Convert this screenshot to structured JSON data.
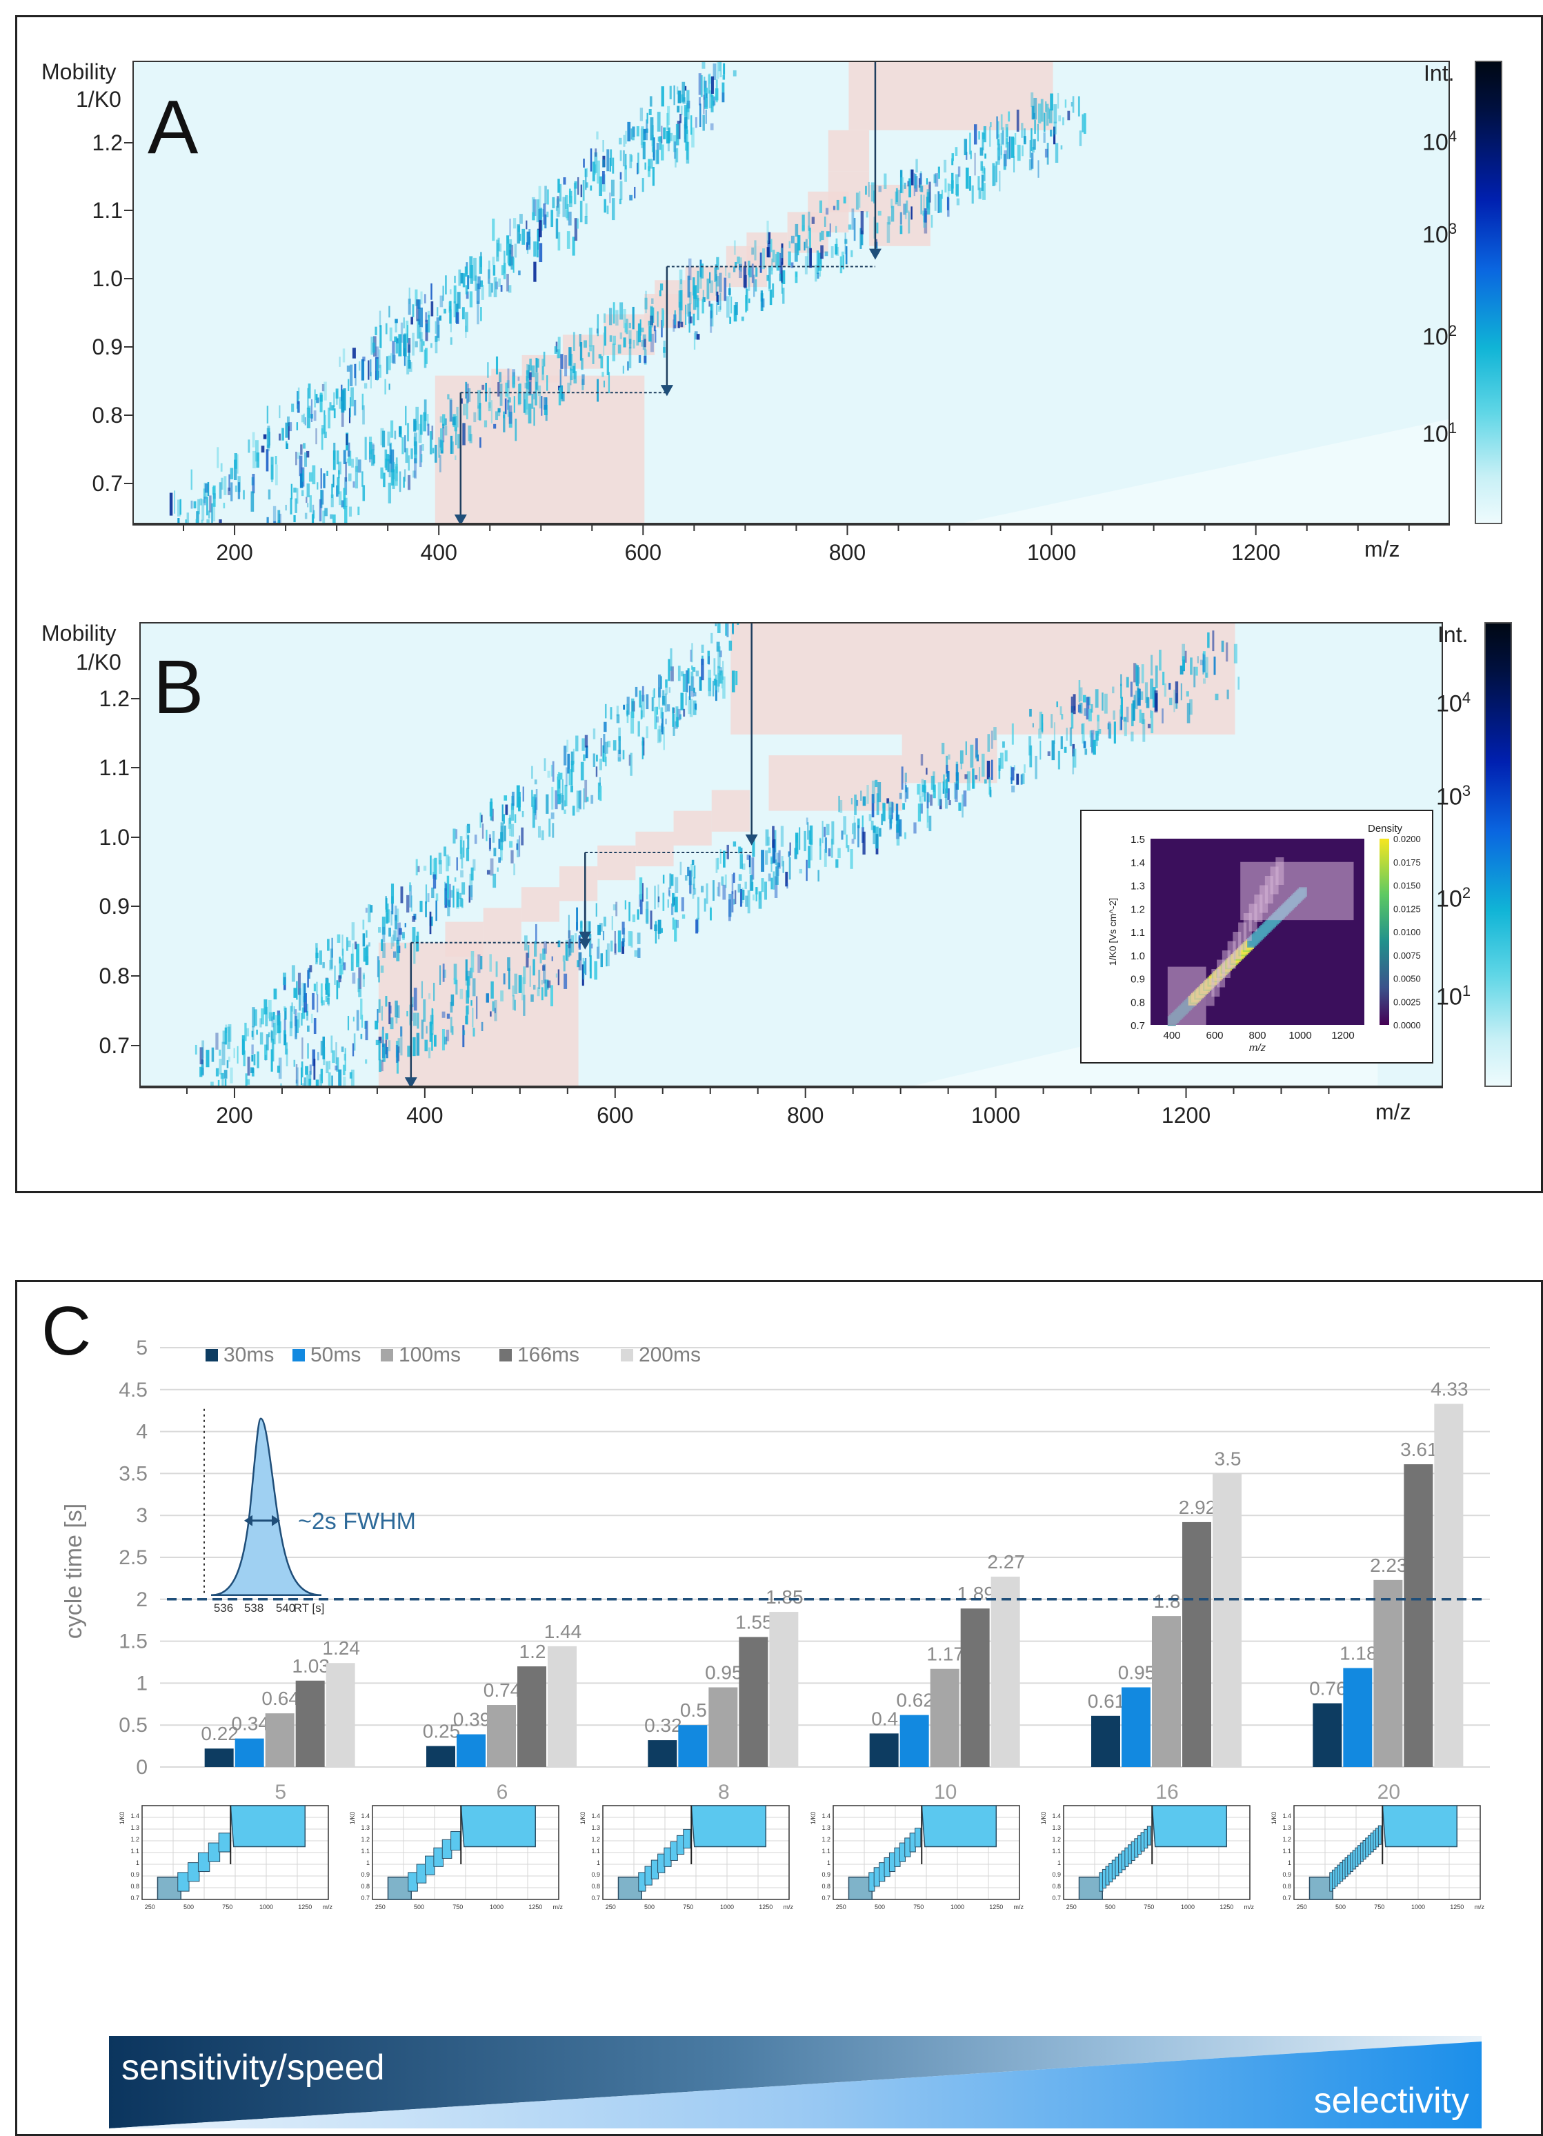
{
  "panels": [
    {
      "letter": "A",
      "y_title_1": "Mobility",
      "y_title_2": "1/K0",
      "y_ticks": [
        "1.2",
        "1.1",
        "1.0",
        "0.9",
        "0.8",
        "0.7"
      ],
      "x_ticks": [
        "200",
        "400",
        "600",
        "800",
        "1000",
        "1200"
      ],
      "x_unit": "m/z",
      "colorbar_title": "Int.",
      "colorbar_ticks": [
        "10^4",
        "10^3",
        "10^2",
        "10^1"
      ]
    },
    {
      "letter": "B",
      "y_title_1": "Mobility",
      "y_title_2": "1/K0",
      "y_ticks": [
        "1.2",
        "1.1",
        "1.0",
        "0.9",
        "0.8",
        "0.7"
      ],
      "x_ticks": [
        "200",
        "400",
        "600",
        "800",
        "1000",
        "1200"
      ],
      "x_unit": "m/z",
      "colorbar_title": "Int.",
      "colorbar_ticks": [
        "10^4",
        "10^3",
        "10^2",
        "10^1"
      ],
      "inset": {
        "title": "Density",
        "ylabel": "1/K0 [Vs cm^-2]",
        "xlabel": "m/z",
        "x_ticks": [
          "400",
          "600",
          "800",
          "1000",
          "1200"
        ],
        "y_ticks": [
          "1.5",
          "1.4",
          "1.3",
          "1.2",
          "1.1",
          "1.0",
          "0.9",
          "0.8",
          "0.7"
        ],
        "cbar_ticks": [
          "0.0200",
          "0.0175",
          "0.0150",
          "0.0125",
          "0.0100",
          "0.0075",
          "0.0050",
          "0.0025",
          "0.0000"
        ]
      }
    }
  ],
  "panel_c": {
    "letter": "C",
    "peak_label": "~2s FWHM",
    "peak_axis": [
      "536",
      "538",
      "540",
      "RT [s]"
    ],
    "threshold": 2,
    "band_left": "sensitivity/speed",
    "band_right": "selectivity",
    "colors": {
      "30ms": "#0d3c61",
      "50ms": "#1289e0",
      "100ms": "#a6a6a6",
      "166ms": "#737373",
      "200ms": "#d9d9d9",
      "threshold": "#1f4e79",
      "window_fill": "#5bc8ef"
    }
  },
  "chart_data": {
    "type": "bar",
    "title": "",
    "ylabel": "cycle time [s]",
    "xlabel": "",
    "ylim": [
      0,
      5
    ],
    "y_ticks": [
      "0",
      "0.5",
      "1",
      "1.5",
      "2",
      "2.5",
      "3",
      "3.5",
      "4",
      "4.5",
      "5"
    ],
    "grid": true,
    "legend_position": "top-left",
    "categories": [
      "5",
      "6",
      "8",
      "10",
      "16",
      "20"
    ],
    "series": [
      {
        "name": "30ms",
        "values": [
          0.22,
          0.25,
          0.32,
          0.4,
          0.61,
          0.76
        ],
        "labels": [
          "0.22",
          "0.25",
          "0.32",
          "0.4",
          "0.61",
          "0.76"
        ]
      },
      {
        "name": "50ms",
        "values": [
          0.34,
          0.39,
          0.5,
          0.62,
          0.95,
          1.18
        ],
        "labels": [
          "0.34",
          "0.39",
          "0.5",
          "0.62",
          "0.95",
          "1.18"
        ]
      },
      {
        "name": "100ms",
        "values": [
          0.64,
          0.74,
          0.95,
          1.17,
          1.8,
          2.23
        ],
        "labels": [
          "0.64",
          "0.74",
          "0.95",
          "1.17",
          "1.8",
          "2.23"
        ]
      },
      {
        "name": "166ms",
        "values": [
          1.03,
          1.2,
          1.55,
          1.89,
          2.92,
          3.61
        ],
        "labels": [
          "1.03",
          "1.2",
          "1.55",
          "1.89",
          "2.92",
          "3.61"
        ]
      },
      {
        "name": "200ms",
        "values": [
          1.24,
          1.44,
          1.85,
          2.27,
          3.5,
          4.33
        ],
        "labels": [
          "1.24",
          "1.44",
          "1.85",
          "2.27",
          "3.5",
          "4.33"
        ]
      }
    ]
  },
  "mini": {
    "y_title": "1/K0",
    "x_unit": "m/z",
    "y_ticks": [
      "1.4",
      "1.3",
      "1.2",
      "1.1",
      "1",
      "0.9",
      "0.8",
      "0.7"
    ],
    "x_ticks": [
      "250",
      "500",
      "750",
      "1000",
      "1250"
    ]
  }
}
